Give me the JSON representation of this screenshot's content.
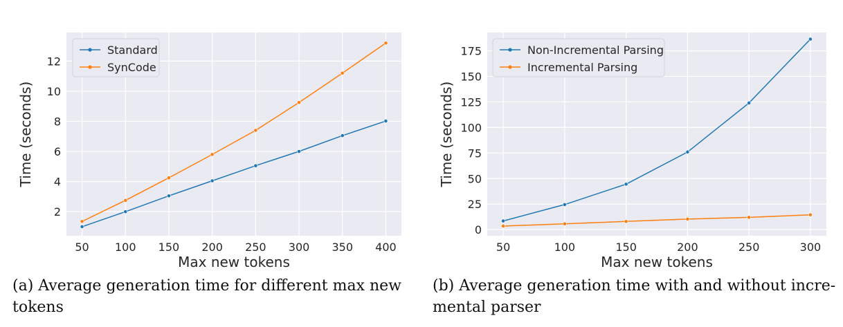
{
  "chart_data": [
    {
      "type": "line",
      "xlabel": "Max new tokens",
      "ylabel": "Time (seconds)",
      "x": [
        50,
        100,
        150,
        200,
        250,
        300,
        350,
        400
      ],
      "xlim": [
        32,
        418
      ],
      "ylim": [
        0.4,
        13.9
      ],
      "xticks": [
        50,
        100,
        150,
        200,
        250,
        300,
        350,
        400
      ],
      "yticks": [
        2,
        4,
        6,
        8,
        10,
        12
      ],
      "grid": true,
      "legend": "top-left",
      "series": [
        {
          "name": "Standard",
          "color": "#1f77b4",
          "values": [
            1.0,
            2.0,
            3.05,
            4.05,
            5.05,
            6.0,
            7.05,
            8.02
          ]
        },
        {
          "name": "SynCode",
          "color": "#ff7f0e",
          "values": [
            1.35,
            2.75,
            4.25,
            5.8,
            7.4,
            9.25,
            11.2,
            13.2
          ]
        }
      ],
      "caption": "(a) Average generation time for different max new tokens"
    },
    {
      "type": "line",
      "xlabel": "Max new tokens",
      "ylabel": "Time (seconds)",
      "x": [
        50,
        100,
        150,
        200,
        250,
        300
      ],
      "xlim": [
        37,
        313
      ],
      "ylim": [
        -6,
        193
      ],
      "xticks": [
        50,
        100,
        150,
        200,
        250,
        300
      ],
      "yticks": [
        0,
        25,
        50,
        75,
        100,
        125,
        150,
        175
      ],
      "grid": true,
      "legend": "top-left",
      "series": [
        {
          "name": "Non-Incremental Parsing",
          "color": "#1f77b4",
          "values": [
            8.5,
            24.5,
            44.5,
            76.0,
            124.0,
            186.5
          ]
        },
        {
          "name": "Incremental Parsing",
          "color": "#ff7f0e",
          "values": [
            3.5,
            5.7,
            8.0,
            10.3,
            12.0,
            14.5
          ]
        }
      ],
      "caption": "(b) Average generation time with and without incremental parser"
    }
  ],
  "captions": {
    "a_line1": "(a) Average generation time for different max new",
    "a_line2": "tokens",
    "b_line1": "(b) Average generation time with and without incre-",
    "b_line2": "mental parser"
  }
}
